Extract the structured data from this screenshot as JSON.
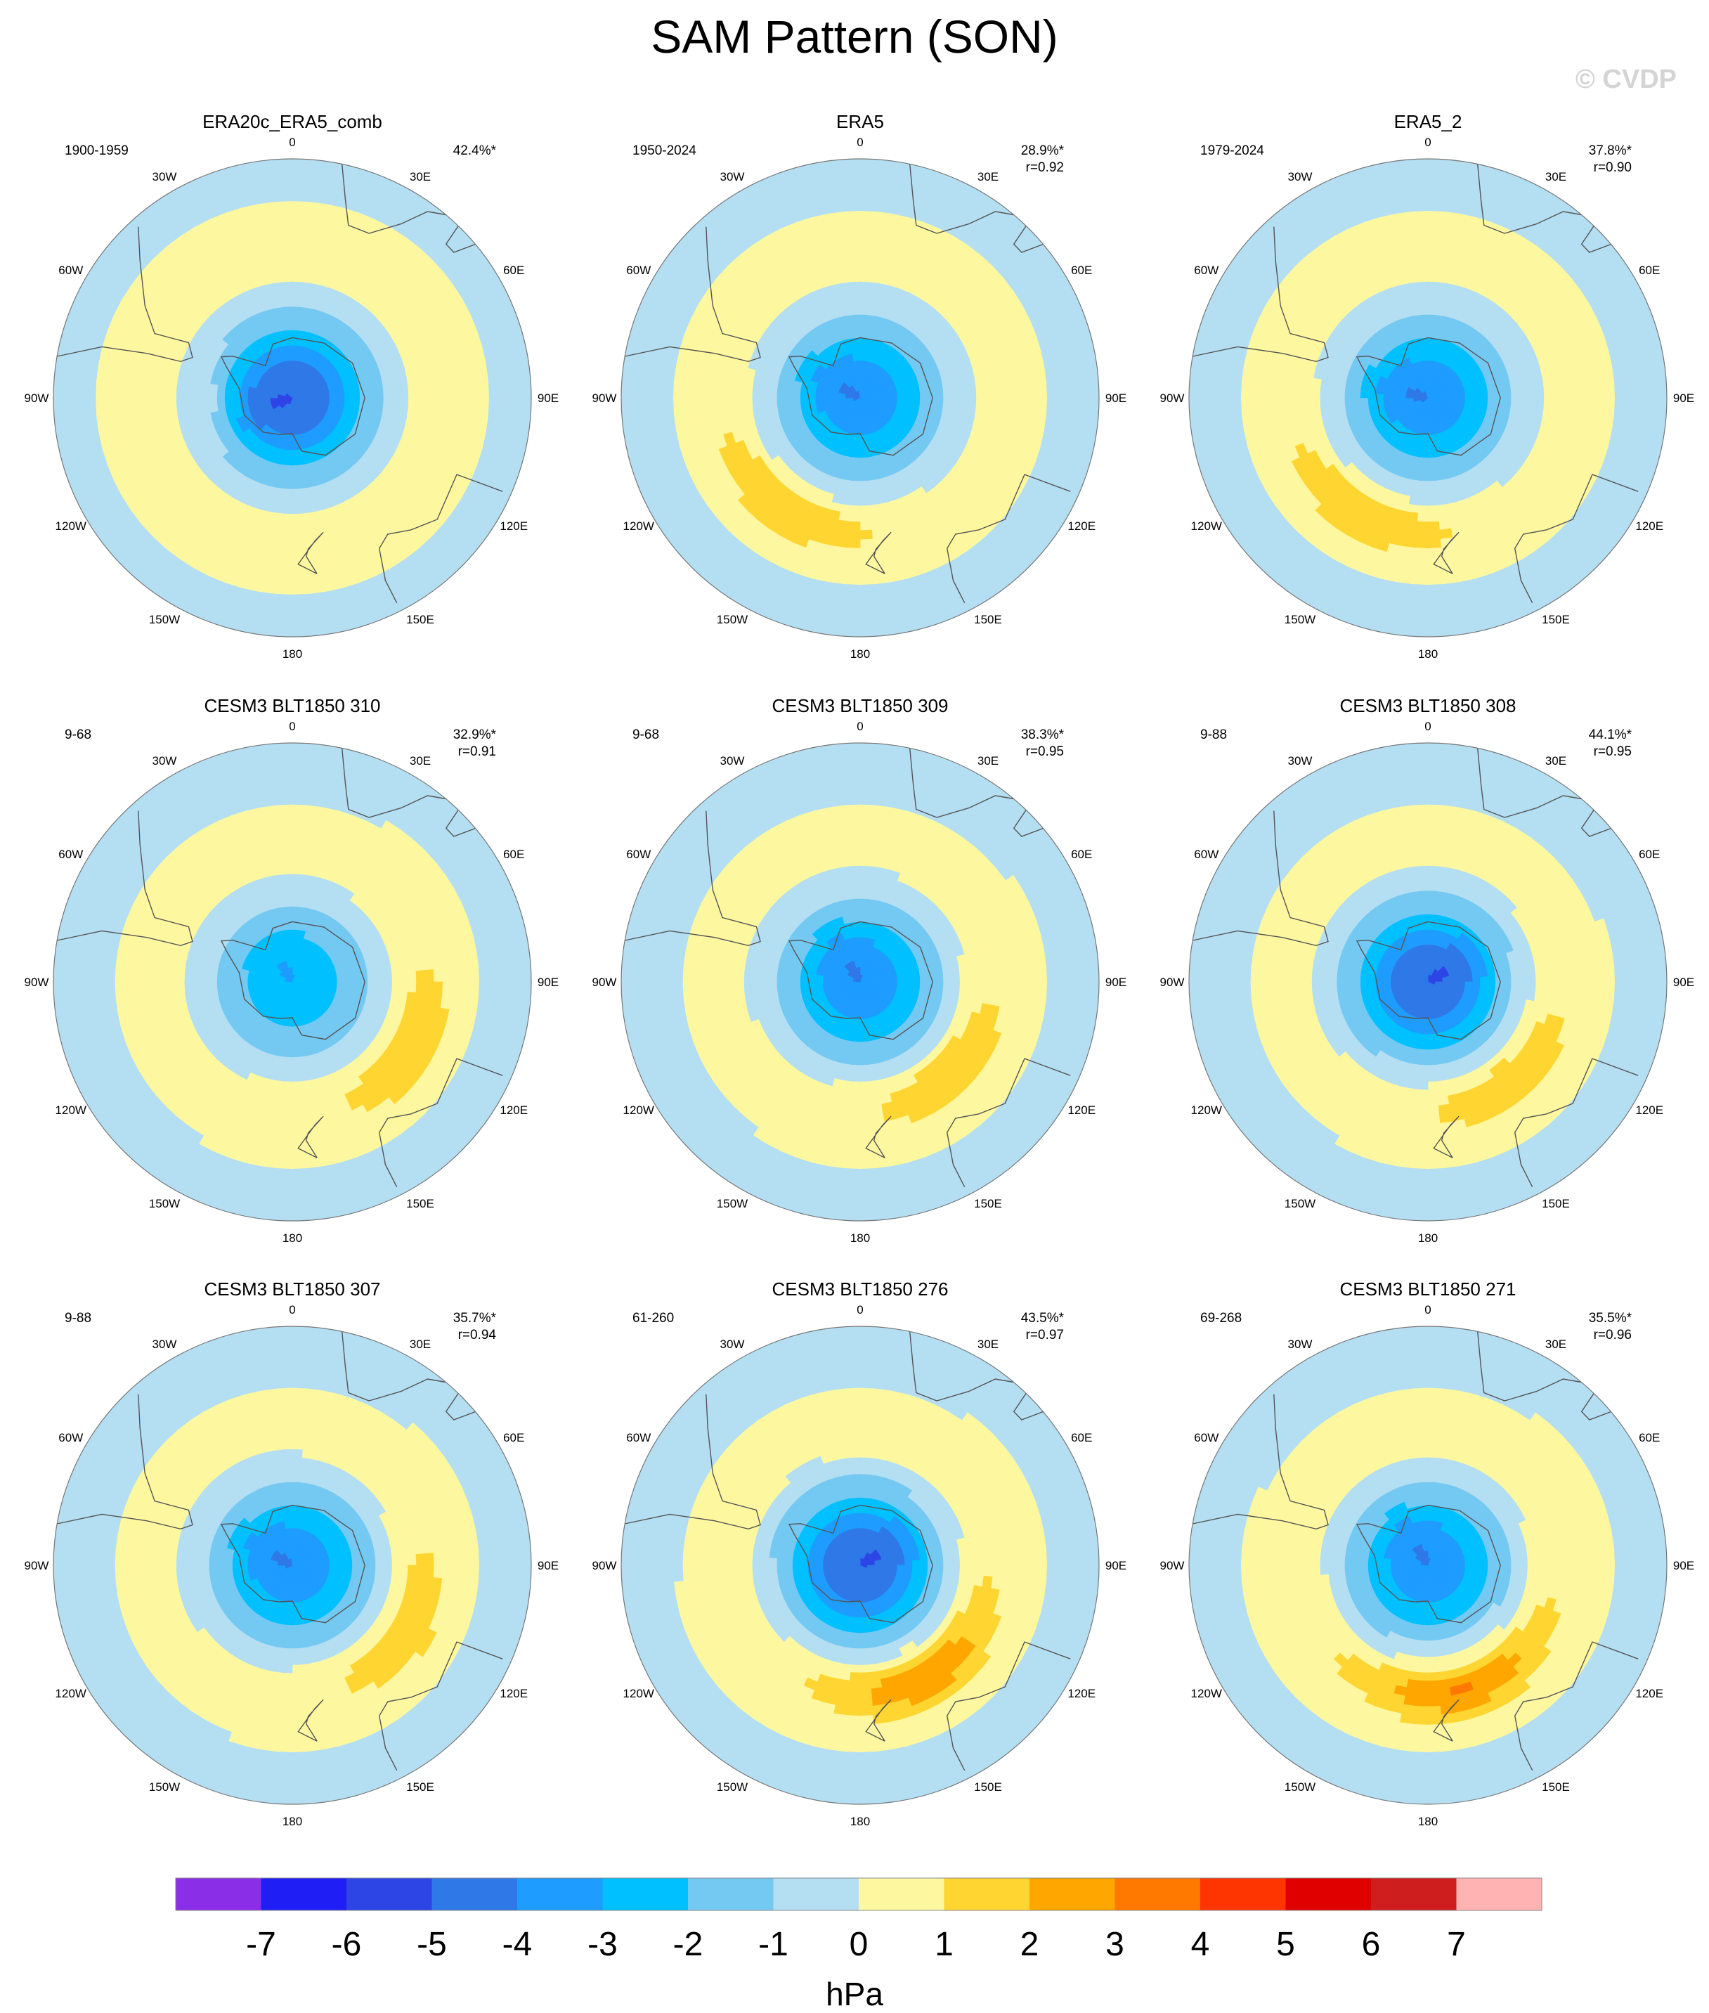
{
  "title": "SAM Pattern (SON)",
  "watermark": "© CVDP",
  "lon_labels": [
    "0",
    "30E",
    "60E",
    "90E",
    "120E",
    "150E",
    "180",
    "150W",
    "120W",
    "90W",
    "60W",
    "30W"
  ],
  "colors": {
    "-7": "#8b2ee8",
    "-6": "#1f1ef5",
    "-5": "#2e45e6",
    "-4": "#2f78e8",
    "-3": "#1e9cff",
    "-2": "#00c0ff",
    "-1": "#74c9f2",
    "-0": "#b4def2",
    "0": "#fdf8a0",
    "1": "#ffd532",
    "2": "#ffa600",
    "3": "#ff7900",
    "4": "#ff3500",
    "5": "#e00000",
    "6": "#ce1e1e",
    "7": "#ffb3b3"
  },
  "chart_data": [
    {
      "type": "heatmap",
      "projection": "south-polar-stereographic",
      "title": "ERA20c_ERA5_comb",
      "period": "1900-1959",
      "pct": "42.4%*",
      "r": "",
      "field": {
        "ring": "meridional",
        "neg_min": -5,
        "pos_max": 1,
        "lobe_lon": 270,
        "lobe_lat": -65,
        "pc_lon": 255
      }
    },
    {
      "type": "heatmap",
      "projection": "south-polar-stereographic",
      "title": "ERA5",
      "period": "1950-2024",
      "pct": "28.9%*",
      "r": "r=0.92",
      "field": {
        "ring": "band",
        "neg_min": -4,
        "pos_max": 2,
        "lobe_lon": 215,
        "lobe_lat": -48,
        "pc_lon": 300
      }
    },
    {
      "type": "heatmap",
      "projection": "south-polar-stereographic",
      "title": "ERA5_2",
      "period": "1979-2024",
      "pct": "37.8%*",
      "r": "r=0.90",
      "field": {
        "ring": "band",
        "neg_min": -4,
        "pos_max": 2,
        "lobe_lon": 210,
        "lobe_lat": -48,
        "pc_lon": 285
      }
    },
    {
      "type": "heatmap",
      "projection": "south-polar-stereographic",
      "title": "CESM3 BLT1850 310",
      "period": "9-68",
      "pct": "32.9%*",
      "r": "r=0.91",
      "field": {
        "ring": "crescent",
        "neg_min": -3,
        "pos_max": 2,
        "lobe_lon": 120,
        "lobe_lat": -45,
        "pc_lon": 330
      }
    },
    {
      "type": "heatmap",
      "projection": "south-polar-stereographic",
      "title": "CESM3 BLT1850 309",
      "period": "9-68",
      "pct": "38.3%*",
      "r": "r=0.95",
      "field": {
        "ring": "crescent",
        "neg_min": -4,
        "pos_max": 2,
        "lobe_lon": 135,
        "lobe_lat": -48,
        "pc_lon": 330
      }
    },
    {
      "type": "heatmap",
      "projection": "south-polar-stereographic",
      "title": "CESM3 BLT1850 308",
      "period": "9-88",
      "pct": "44.1%*",
      "r": "r=0.95",
      "field": {
        "ring": "crescent",
        "neg_min": -5,
        "pos_max": 2,
        "lobe_lon": 140,
        "lobe_lat": -48,
        "pc_lon": 60
      }
    },
    {
      "type": "heatmap",
      "projection": "south-polar-stereographic",
      "title": "CESM3 BLT1850 307",
      "period": "9-88",
      "pct": "35.7%*",
      "r": "r=0.94",
      "field": {
        "ring": "crescent",
        "neg_min": -4,
        "pos_max": 2,
        "lobe_lon": 120,
        "lobe_lat": -47,
        "pc_lon": 300
      }
    },
    {
      "type": "heatmap",
      "projection": "south-polar-stereographic",
      "title": "CESM3 BLT1850 276",
      "period": "61-260",
      "pct": "43.5%*",
      "r": "r=0.97",
      "field": {
        "ring": "crescent",
        "neg_min": -5,
        "pos_max": 3,
        "lobe_lon": 150,
        "lobe_lat": -48,
        "pc_lon": 60
      }
    },
    {
      "type": "heatmap",
      "projection": "south-polar-stereographic",
      "title": "CESM3 BLT1850 271",
      "period": "69-268",
      "pct": "35.5%*",
      "r": "r=0.96",
      "field": {
        "ring": "crescent",
        "neg_min": -4,
        "pos_max": 3,
        "lobe_lon": 165,
        "lobe_lat": -48,
        "pc_lon": 330
      }
    }
  ],
  "colorbar": {
    "unit": "hPa",
    "ticks": [
      "-7",
      "-6",
      "-5",
      "-4",
      "-3",
      "-2",
      "-1",
      "0",
      "1",
      "2",
      "3",
      "4",
      "5",
      "6",
      "7"
    ],
    "levels": [
      -7,
      -6,
      -5,
      -4,
      -3,
      -2,
      -1,
      0,
      1,
      2,
      3,
      4,
      5,
      6,
      7
    ],
    "bins": [
      "-7",
      "-6",
      "-5",
      "-4",
      "-3",
      "-2",
      "-1",
      "-0",
      "0",
      "1",
      "2",
      "3",
      "4",
      "5",
      "6",
      "7"
    ]
  }
}
